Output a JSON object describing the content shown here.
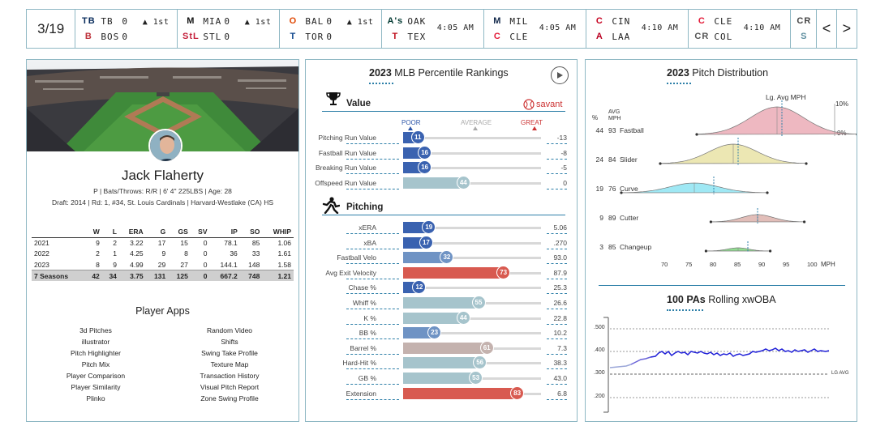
{
  "scoreboard": {
    "date": "3/19",
    "games": [
      {
        "away": "TB",
        "away_score": "0",
        "home": "BOS",
        "home_score": "0",
        "status": "▲ 1st",
        "away_color": "#092c5c",
        "home_color": "#bd3039",
        "away_logo": "TB",
        "home_logo": "B"
      },
      {
        "away": "MIA",
        "away_score": "0",
        "home": "STL",
        "home_score": "0",
        "status": "▲ 1st",
        "away_color": "#111111",
        "home_color": "#c41e3a",
        "away_logo": "M",
        "home_logo": "StL"
      },
      {
        "away": "BAL",
        "away_score": "0",
        "home": "TOR",
        "home_score": "0",
        "status": "▲ 1st",
        "away_color": "#df4601",
        "home_color": "#134a8e",
        "away_logo": "O",
        "home_logo": "T"
      },
      {
        "away": "OAK",
        "away_score": "",
        "home": "TEX",
        "home_score": "",
        "status": "4:05 AM",
        "away_color": "#003831",
        "home_color": "#c0111f",
        "away_logo": "A's",
        "home_logo": "T"
      },
      {
        "away": "MIL",
        "away_score": "",
        "home": "CLE",
        "home_score": "",
        "status": "4:05 AM",
        "away_color": "#12284b",
        "home_color": "#e31937",
        "away_logo": "M",
        "home_logo": "C"
      },
      {
        "away": "CIN",
        "away_score": "",
        "home": "LAA",
        "home_score": "",
        "status": "4:10 AM",
        "away_color": "#c6011f",
        "home_color": "#ba0021",
        "away_logo": "C",
        "home_logo": "A"
      },
      {
        "away": "CLE",
        "away_score": "",
        "home": "COL",
        "home_score": "",
        "status": "4:10 AM",
        "away_color": "#e31937",
        "home_color": "#555555",
        "away_logo": "C",
        "home_logo": "CR"
      },
      {
        "away": "",
        "away_score": "",
        "home": "",
        "home_score": "",
        "status": "",
        "away_color": "#444",
        "home_color": "#5f8fa0",
        "away_logo": "CR",
        "home_logo": "S"
      }
    ],
    "prev": "<",
    "next": ">"
  },
  "player": {
    "name": "Jack Flaherty",
    "info": "P | Bats/Throws: R/R | 6' 4\" 225LBS | Age: 28",
    "draft": "Draft: 2014 | Rd: 1, #34, St. Louis Cardinals | Harvard-Westlake (CA) HS",
    "stat_headers": [
      "",
      "W",
      "L",
      "ERA",
      "G",
      "GS",
      "SV",
      "IP",
      "SO",
      "WHIP"
    ],
    "stat_rows": [
      [
        "2021",
        "9",
        "2",
        "3.22",
        "17",
        "15",
        "0",
        "78.1",
        "85",
        "1.06"
      ],
      [
        "2022",
        "2",
        "1",
        "4.25",
        "9",
        "8",
        "0",
        "36",
        "33",
        "1.61"
      ],
      [
        "2023",
        "8",
        "9",
        "4.99",
        "29",
        "27",
        "0",
        "144.1",
        "148",
        "1.58"
      ]
    ],
    "stat_total": [
      "7 Seasons",
      "42",
      "34",
      "3.75",
      "131",
      "125",
      "0",
      "667.2",
      "748",
      "1.21"
    ],
    "apps_title": "Player Apps",
    "apps_left": [
      "3d Pitches",
      "illustrator",
      "Pitch Highlighter",
      "Pitch Mix",
      "Player Comparison",
      "Player Similarity",
      "Plinko"
    ],
    "apps_right": [
      "Random Video",
      "Shifts",
      "Swing Take Profile",
      "Texture Map",
      "Transaction History",
      "Visual Pitch Report",
      "Zone Swing Profile"
    ]
  },
  "percentile": {
    "title_year": "2023",
    "title_rest": "MLB Percentile Rankings",
    "value_title": "Value",
    "pitching_title": "Pitching",
    "savant": "savant",
    "poor": "POOR",
    "average": "AVERAGE",
    "great": "GREAT",
    "value_metrics": [
      {
        "label": "Pitching Run Value",
        "pct": 11,
        "val": "-13"
      },
      {
        "label": "Fastball Run Value",
        "pct": 16,
        "val": "-8"
      },
      {
        "label": "Breaking Run Value",
        "pct": 16,
        "val": "-5"
      },
      {
        "label": "Offspeed Run Value",
        "pct": 44,
        "val": "0"
      }
    ],
    "pitching_metrics": [
      {
        "label": "xERA",
        "pct": 19,
        "val": "5.06"
      },
      {
        "label": "xBA",
        "pct": 17,
        "val": ".270"
      },
      {
        "label": "Fastball Velo",
        "pct": 32,
        "val": "93.0"
      },
      {
        "label": "Avg Exit Velocity",
        "pct": 73,
        "val": "87.9"
      },
      {
        "label": "Chase %",
        "pct": 12,
        "val": "25.3"
      },
      {
        "label": "Whiff %",
        "pct": 55,
        "val": "26.6"
      },
      {
        "label": "K %",
        "pct": 44,
        "val": "22.8"
      },
      {
        "label": "BB %",
        "pct": 23,
        "val": "10.2"
      },
      {
        "label": "Barrel %",
        "pct": 61,
        "val": "7.3"
      },
      {
        "label": "Hard-Hit %",
        "pct": 56,
        "val": "38.3"
      },
      {
        "label": "GB %",
        "pct": 53,
        "val": "43.0"
      },
      {
        "label": "Extension",
        "pct": 83,
        "val": "6.8"
      }
    ]
  },
  "pitch_dist": {
    "title_year": "2023",
    "title_rest": "Pitch Distribution",
    "lg_label": "Lg. Avg MPH",
    "pct_col": "%",
    "avg_col_1": "AVG",
    "avg_col_2": "MPH",
    "pct_10": "10%",
    "pct_0": "0%",
    "x_ticks": [
      "70",
      "75",
      "80",
      "85",
      "90",
      "95",
      "100"
    ],
    "x_unit": "MPH",
    "pitches": [
      {
        "pct": "44",
        "mph": "93",
        "name": "Fastball",
        "color": "#e8a0ac",
        "lg": 94
      },
      {
        "pct": "24",
        "mph": "84",
        "name": "Slider",
        "color": "#e6df9a",
        "lg": 85
      },
      {
        "pct": "19",
        "mph": "76",
        "name": "Curve",
        "color": "#7fe0f0",
        "lg": 80
      },
      {
        "pct": "9",
        "mph": "89",
        "name": "Cutter",
        "color": "#d8a8a2",
        "lg": 89
      },
      {
        "pct": "3",
        "mph": "85",
        "name": "Changeup",
        "color": "#6ed06e",
        "lg": 87
      }
    ]
  },
  "xwoba": {
    "title_num": "100 PAs",
    "title_rest": "Rolling xwOBA",
    "y_ticks": [
      ".500",
      ".400",
      ".300",
      ".200"
    ],
    "lg_avg": "LG AVG"
  }
}
